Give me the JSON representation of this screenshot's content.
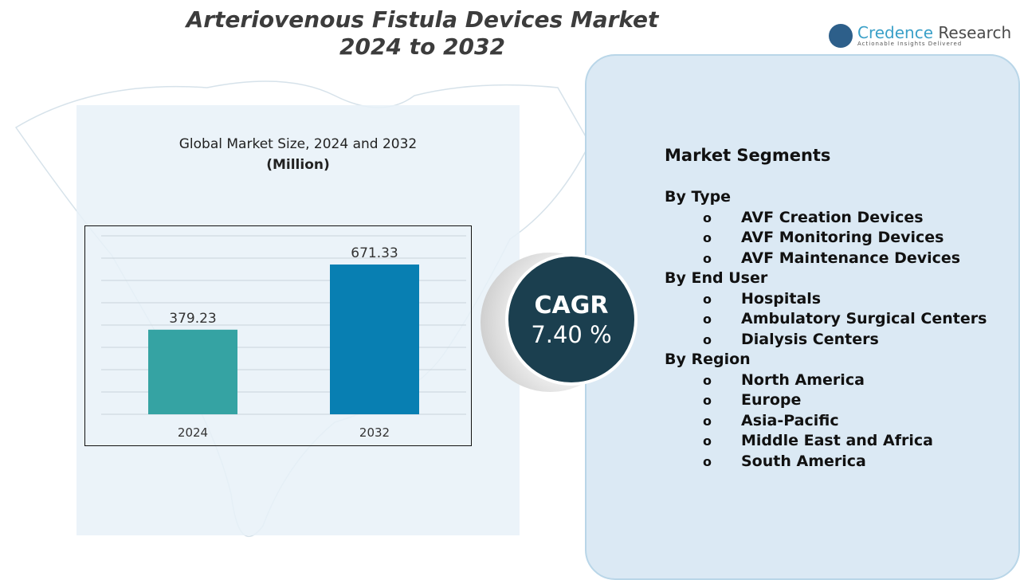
{
  "header": {
    "title_line1": "Arteriovenous Fistula Devices Market",
    "title_line2": "2024 to 2032"
  },
  "logo": {
    "name_part1": "Credence",
    "name_part2": "Research",
    "tagline": "Actionable Insights Delivered"
  },
  "chart_data": {
    "type": "bar",
    "title": "Global Market Size, 2024 and 2032",
    "unit": "(Million)",
    "categories": [
      "2024",
      "2032"
    ],
    "values": [
      379.23,
      671.33
    ],
    "data_labels": [
      "379.23",
      "671.33"
    ],
    "colors": [
      "#35a3a3",
      "#087fb2"
    ],
    "ylim": [
      0,
      800
    ],
    "grid": true
  },
  "cagr": {
    "label": "CAGR",
    "value": "7.40 %"
  },
  "segments": {
    "title": "Market Segments",
    "groups": [
      {
        "label": "By Type",
        "items": [
          "AVF Creation Devices",
          "AVF Monitoring Devices",
          "AVF Maintenance Devices"
        ]
      },
      {
        "label": "By End User",
        "items": [
          "Hospitals",
          "Ambulatory Surgical Centers",
          "Dialysis Centers"
        ]
      },
      {
        "label": "By Region",
        "items": [
          "North America",
          "Europe",
          "Asia-Pacific",
          "Middle East and Africa",
          "South America"
        ]
      }
    ],
    "bullet": "o"
  }
}
